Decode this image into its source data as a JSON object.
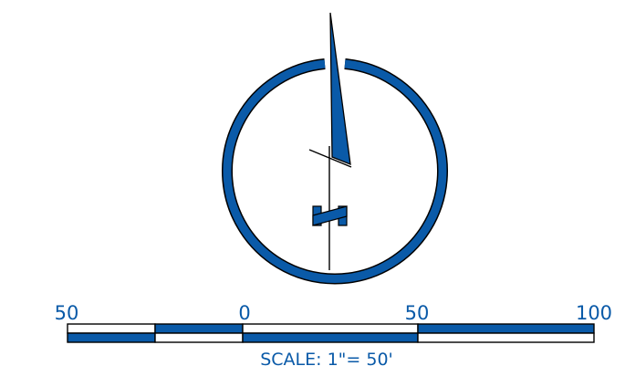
{
  "colors": {
    "accent": "#0a5aa8",
    "outline": "#000000",
    "background": "#ffffff"
  },
  "north_arrow": {
    "north_symbol": "N"
  },
  "scale_bar": {
    "ticks": [
      {
        "label": "50"
      },
      {
        "label": "0"
      },
      {
        "label": "50"
      },
      {
        "label": "100"
      }
    ],
    "caption": "SCALE:  1\"= 50'"
  }
}
